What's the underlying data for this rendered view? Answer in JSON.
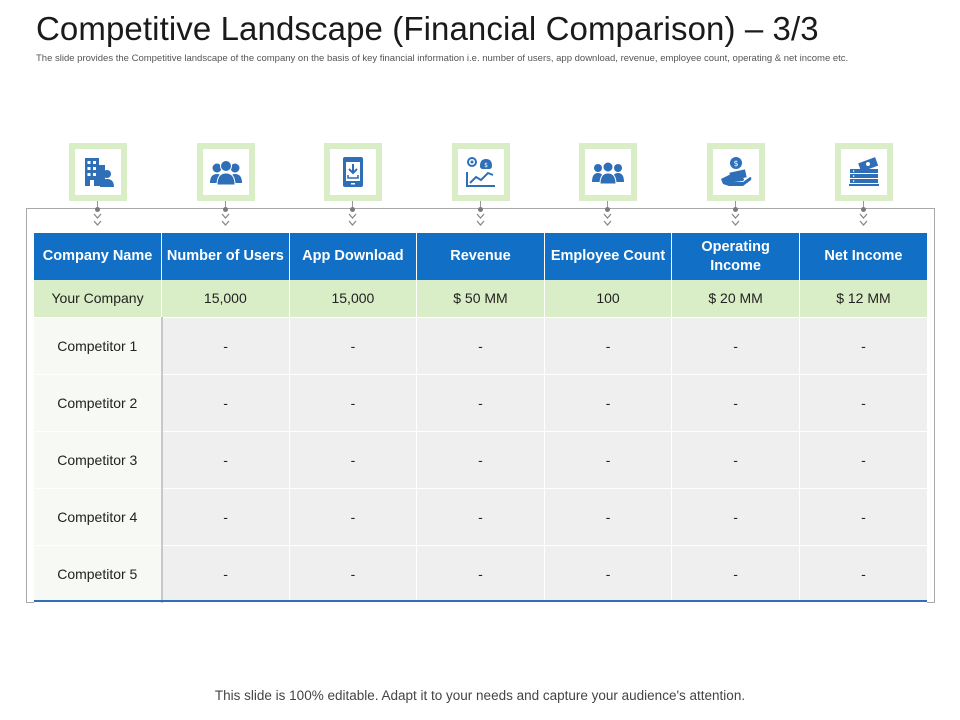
{
  "title": "Competitive Landscape (Financial Comparison) – 3/3",
  "subtitle": "The slide provides the Competitive landscape of the company on the basis of key financial information i.e. number of users, app download, revenue, employee count, operating & net income etc.",
  "colors": {
    "header_blue": "#1170c6",
    "accent_green": "#d9edc6",
    "row_gray": "#efefef",
    "icon_blue": "#2f6fb8"
  },
  "icons": [
    "company-building-icon",
    "users-group-icon",
    "app-download-icon",
    "revenue-chart-icon",
    "employees-icon",
    "operating-income-icon",
    "net-income-money-icon"
  ],
  "table": {
    "headers": [
      "Company Name",
      "Number of Users",
      "App Download",
      "Revenue",
      "Employee Count",
      "Operating Income",
      "Net Income"
    ],
    "your_company": [
      "Your Company",
      "15,000",
      "15,000",
      "$ 50 MM",
      "100",
      "$ 20 MM",
      "$ 12 MM"
    ],
    "competitors": [
      [
        "Competitor 1",
        "-",
        "-",
        "-",
        "-",
        "-",
        "-"
      ],
      [
        "Competitor 2",
        "-",
        "-",
        "-",
        "-",
        "-",
        "-"
      ],
      [
        "Competitor 3",
        "-",
        "-",
        "-",
        "-",
        "-",
        "-"
      ],
      [
        "Competitor 4",
        "-",
        "-",
        "-",
        "-",
        "-",
        "-"
      ],
      [
        "Competitor 5",
        "-",
        "-",
        "-",
        "-",
        "-",
        "-"
      ]
    ]
  },
  "footer": "This slide is 100% editable. Adapt it to your needs and capture your audience's attention."
}
